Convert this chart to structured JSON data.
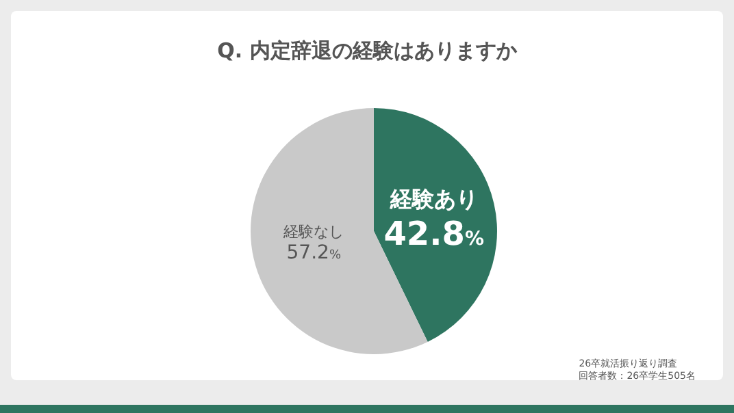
{
  "chart_data": {
    "type": "pie",
    "title": "Q. 内定辞退の経験はありますか",
    "categories": [
      "経験あり",
      "経験なし"
    ],
    "values": [
      42.8,
      57.2
    ],
    "colors": [
      "#2e7560",
      "#c9c9c9"
    ],
    "value_labels": [
      "42.8%",
      "57.2%"
    ],
    "annotations": [
      "26卒就活振り返り調査",
      "回答者数：26卒学生505名"
    ]
  }
}
